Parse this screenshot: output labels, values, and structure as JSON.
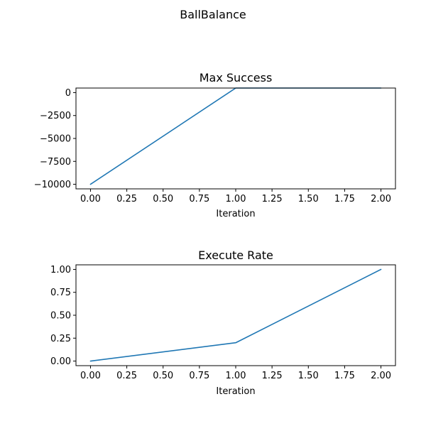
{
  "figure": {
    "title": "BallBalance"
  },
  "chart_data": [
    {
      "type": "line",
      "title": "Max Success",
      "xlabel": "Iteration",
      "ylabel": "",
      "xlim": [
        -0.1,
        2.1
      ],
      "ylim": [
        -10500,
        500
      ],
      "xticks": [
        0.0,
        0.25,
        0.5,
        0.75,
        1.0,
        1.25,
        1.5,
        1.75,
        2.0
      ],
      "xtick_labels": [
        "0.00",
        "0.25",
        "0.50",
        "0.75",
        "1.00",
        "1.25",
        "1.50",
        "1.75",
        "2.00"
      ],
      "yticks": [
        0,
        -2500,
        -5000,
        -7500,
        -10000
      ],
      "ytick_labels": [
        "0",
        "−2500",
        "−5000",
        "−7500",
        "−10000"
      ],
      "grid": false,
      "series": [
        {
          "x": [
            0,
            1,
            2
          ],
          "y": [
            -10000,
            500,
            500
          ],
          "color": "#1f77b4"
        }
      ]
    },
    {
      "type": "line",
      "title": "Execute Rate",
      "xlabel": "Iteration",
      "ylabel": "",
      "xlim": [
        -0.1,
        2.1
      ],
      "ylim": [
        -0.05,
        1.05
      ],
      "xticks": [
        0.0,
        0.25,
        0.5,
        0.75,
        1.0,
        1.25,
        1.5,
        1.75,
        2.0
      ],
      "xtick_labels": [
        "0.00",
        "0.25",
        "0.50",
        "0.75",
        "1.00",
        "1.25",
        "1.50",
        "1.75",
        "2.00"
      ],
      "yticks": [
        0.0,
        0.25,
        0.5,
        0.75,
        1.0
      ],
      "ytick_labels": [
        "0.00",
        "0.25",
        "0.50",
        "0.75",
        "1.00"
      ],
      "grid": false,
      "series": [
        {
          "x": [
            0,
            1,
            2
          ],
          "y": [
            0.0,
            0.2,
            1.0
          ],
          "color": "#1f77b4"
        }
      ]
    }
  ]
}
